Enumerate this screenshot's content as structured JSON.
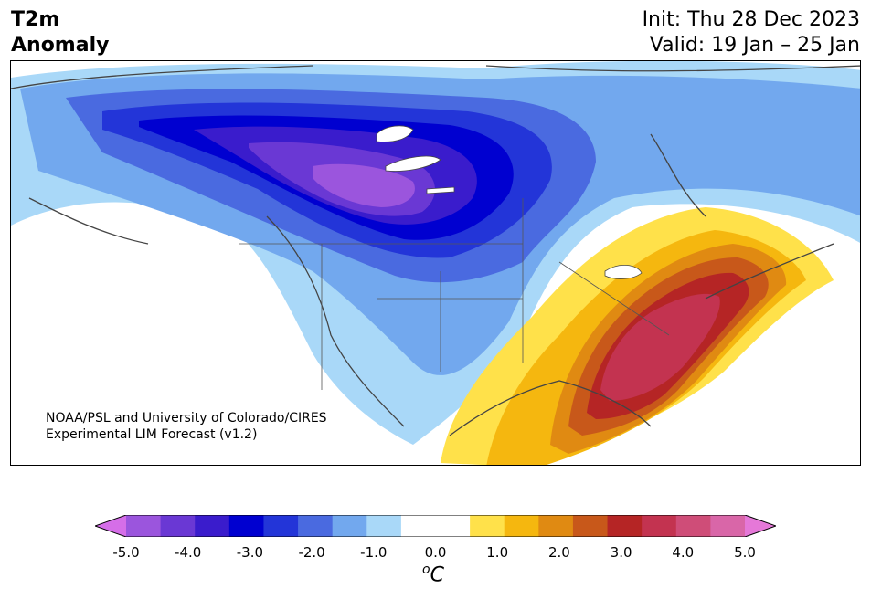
{
  "header": {
    "title_line1": "T2m",
    "title_line2": "Anomaly",
    "init": "Init: Thu 28 Dec 2023",
    "valid": "Valid: 19 Jan – 25 Jan"
  },
  "credit": {
    "line1": "NOAA/PSL and University of Colorado/CIRES",
    "line2": "Experimental LIM Forecast (v1.2)"
  },
  "colorbar": {
    "ticks": [
      "-5.0",
      "-4.0",
      "-3.0",
      "-2.0",
      "-1.0",
      "0.0",
      "1.0",
      "2.0",
      "3.0",
      "4.0",
      "5.0"
    ],
    "unit_sup": "o",
    "unit": "C",
    "colors": [
      "#d56ee8",
      "#9b55dd",
      "#6a38d4",
      "#3a1ccc",
      "#0000d0",
      "#2335d8",
      "#4a6ae0",
      "#72a8ee",
      "#a9d8f8",
      "#ffffff",
      "#ffffff",
      "#ffe14a",
      "#f5b70f",
      "#e08a12",
      "#c8581a",
      "#b52525",
      "#c33350",
      "#cf4d78",
      "#d966a8",
      "#e578d8"
    ]
  }
}
